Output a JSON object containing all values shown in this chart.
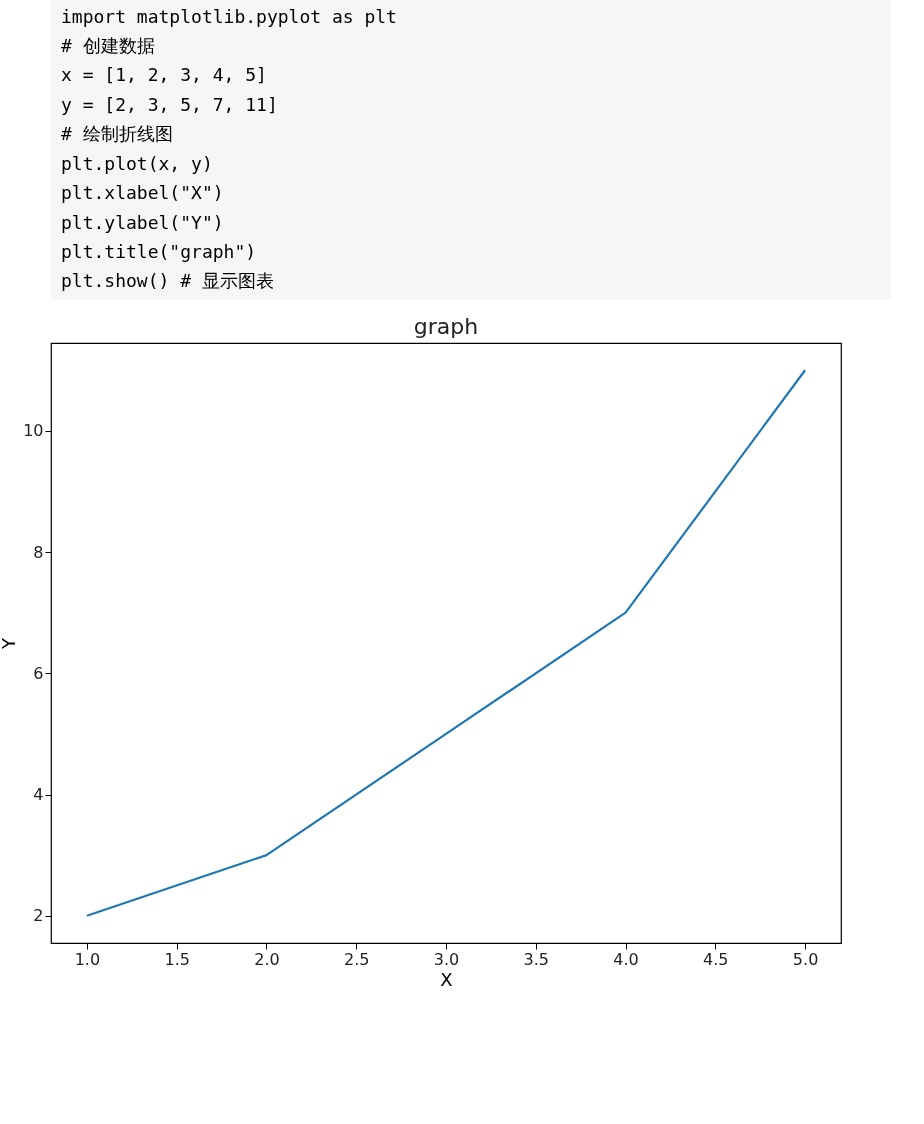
{
  "chart_data": {
    "type": "line",
    "title": "graph",
    "xlabel": "X",
    "ylabel": "Y",
    "annotations": [
      "import matplotlib.pyplot as plt",
      "# 创建数据",
      "x = [1, 2, 3, 4, 5]",
      "y = [2, 3, 5, 7, 11]",
      "# 绘制折线图",
      "plt.plot(x, y)",
      "plt.xlabel(\"X\")",
      "plt.ylabel(\"Y\")",
      "plt.title(\"graph\")",
      "plt.show()  # 显示图表"
    ],
    "x": [
      1,
      2,
      3,
      4,
      5
    ],
    "series": [
      {
        "color": "#1f77b4",
        "values": [
          2,
          3,
          5,
          7,
          11
        ]
      }
    ],
    "xlim": [
      0.8,
      5.2
    ],
    "ylim": [
      1.55,
      11.45
    ],
    "xticks": [
      {
        "value": 1,
        "label": "1.0"
      },
      {
        "value": 1.5,
        "label": "1.5"
      },
      {
        "value": 2,
        "label": "2.0"
      },
      {
        "value": 2.5,
        "label": "2.5"
      },
      {
        "value": 3,
        "label": "3.0"
      },
      {
        "value": 3.5,
        "label": "3.5"
      },
      {
        "value": 4,
        "label": "4.0"
      },
      {
        "value": 4.5,
        "label": "4.5"
      },
      {
        "value": 5,
        "label": "5.0"
      }
    ],
    "yticks": [
      2,
      4,
      6,
      8,
      10
    ],
    "grid": false,
    "marker": "none",
    "line_style": "solid"
  }
}
